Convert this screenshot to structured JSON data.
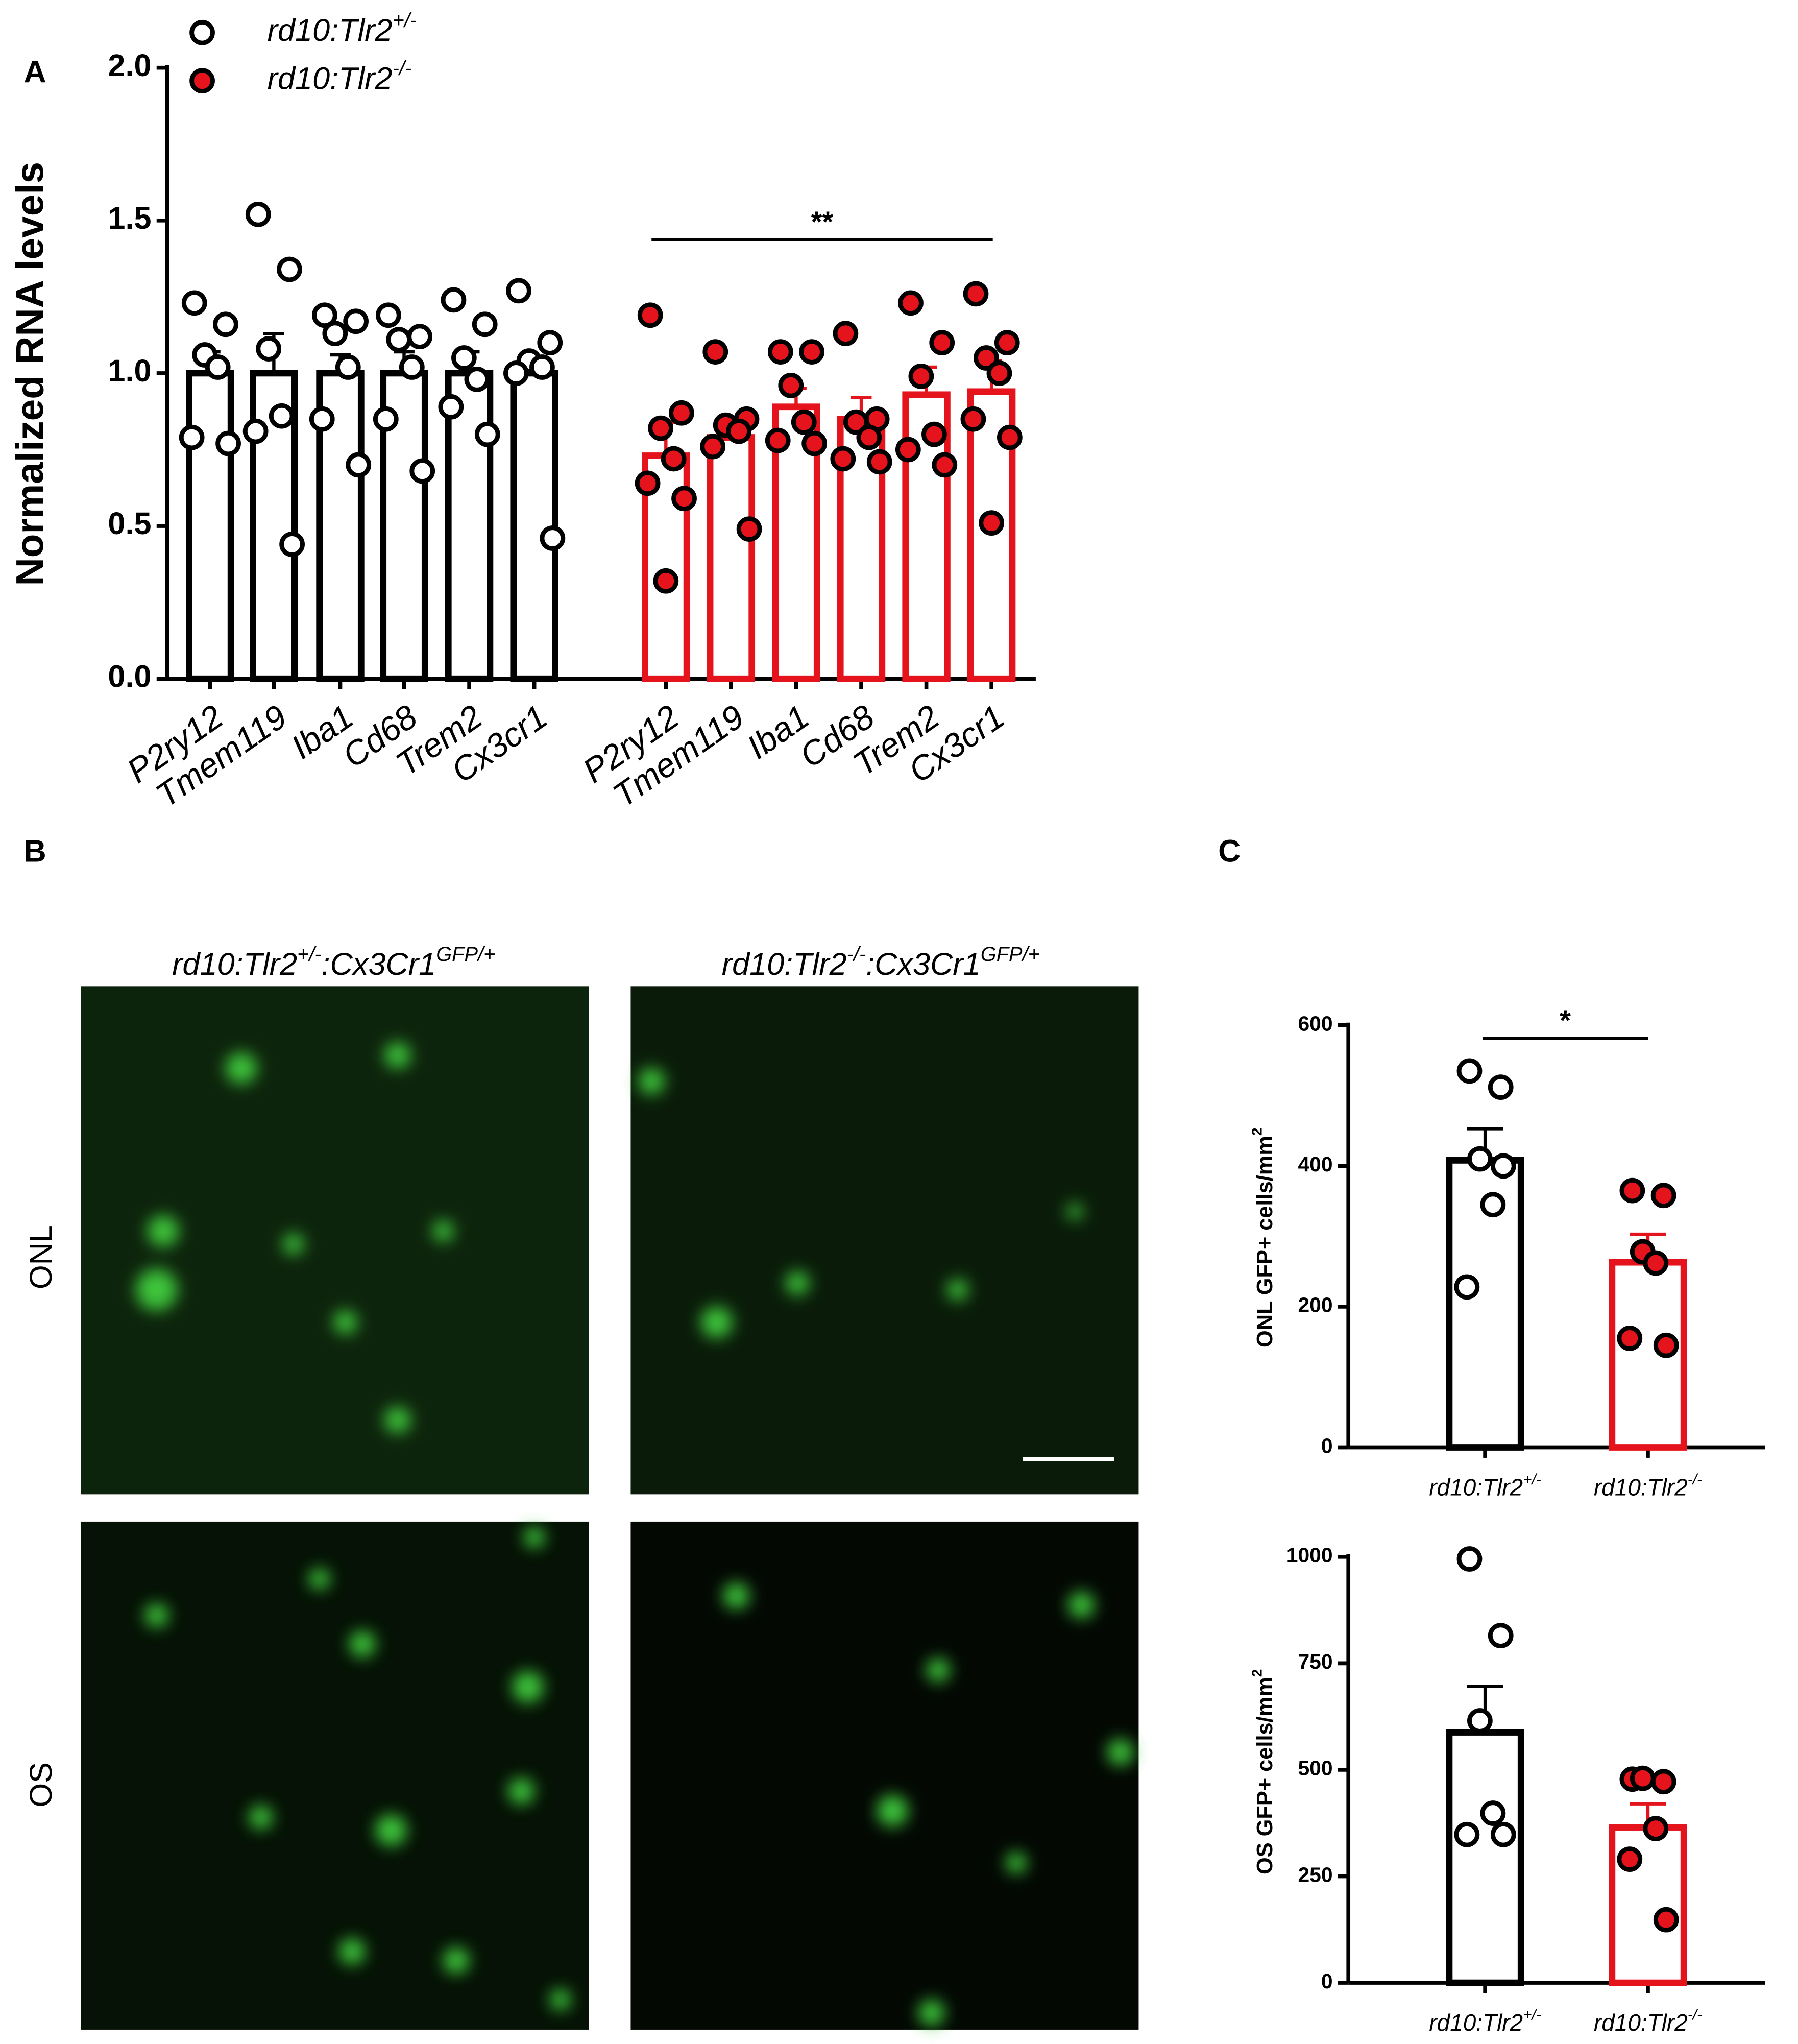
{
  "chart_data": [
    {
      "type": "bar",
      "panel": "A",
      "ylabel": "Normalized RNA levels",
      "categories": [
        "P2ry12",
        "Tmem119",
        "Iba1",
        "Cd68",
        "Trem2",
        "Cx3cr1"
      ],
      "ylim": [
        0,
        2.0
      ],
      "yticks": [
        {
          "value": 0,
          "label": "0.0"
        },
        {
          "value": 0.5,
          "label": "0.5"
        },
        {
          "value": 1.0,
          "label": "1.0"
        },
        {
          "value": 1.5,
          "label": "1.5"
        },
        {
          "value": 2.0,
          "label": "2.0"
        }
      ],
      "annotation": "**",
      "series": [
        {
          "name": "rd10:Tlr2+/-",
          "color": "#000000",
          "marker_fill": "#ffffff",
          "values": [
            1.0,
            1.0,
            1.0,
            1.0,
            1.0,
            1.0
          ],
          "errors": [
            0.07,
            0.13,
            0.06,
            0.07,
            0.07,
            0.04
          ],
          "points": [
            [
              1.23,
              1.16,
              1.06,
              1.02,
              0.79,
              0.77
            ],
            [
              1.52,
              1.34,
              1.08,
              0.86,
              0.81,
              0.44
            ],
            [
              1.19,
              1.17,
              1.13,
              1.02,
              0.85,
              0.7
            ],
            [
              1.19,
              1.12,
              1.11,
              1.02,
              0.85,
              0.68
            ],
            [
              1.24,
              1.16,
              1.05,
              0.98,
              0.89,
              0.8
            ],
            [
              1.27,
              1.1,
              1.04,
              1.02,
              1.0,
              0.46
            ]
          ]
        },
        {
          "name": "rd10:Tlr2-/-",
          "color": "#e5131b",
          "marker_fill": "#e5131b",
          "values": [
            0.73,
            0.79,
            0.89,
            0.85,
            0.93,
            0.94
          ],
          "errors": [
            0.11,
            0.05,
            0.06,
            0.07,
            0.09,
            0.1
          ],
          "points": [
            [
              1.19,
              0.87,
              0.82,
              0.72,
              0.64,
              0.59,
              0.32
            ],
            [
              1.07,
              0.85,
              0.83,
              0.81,
              0.76,
              0.49
            ],
            [
              1.07,
              1.07,
              0.96,
              0.84,
              0.78,
              0.77
            ],
            [
              1.13,
              0.85,
              0.84,
              0.79,
              0.72,
              0.71
            ],
            [
              1.23,
              1.1,
              0.99,
              0.8,
              0.75,
              0.7
            ],
            [
              1.26,
              1.1,
              1.05,
              1.0,
              0.85,
              0.79,
              0.51
            ]
          ]
        }
      ]
    },
    {
      "type": "bar",
      "panel": "C",
      "ylabel": "ONL GFP+ cells/mm2",
      "categories": [
        "rd10:Tlr2+/-",
        "rd10:Tlr2-/-"
      ],
      "colors": [
        "#000000",
        "#e5131b"
      ],
      "marker_fills": [
        "#ffffff",
        "#e5131b"
      ],
      "values": [
        408,
        263
      ],
      "errors": [
        45,
        40
      ],
      "points": [
        [
          535,
          512,
          410,
          345,
          228,
          400
        ],
        [
          365,
          358,
          278,
          262,
          155,
          145
        ]
      ],
      "ylim": [
        0,
        600
      ],
      "yticks": [
        0,
        200,
        400,
        600
      ],
      "annotation": "*"
    },
    {
      "type": "bar",
      "ylabel": "OS GFP+ cells/mm2",
      "categories": [
        "rd10:Tlr2+/-",
        "rd10:Tlr2-/-"
      ],
      "colors": [
        "#000000",
        "#e5131b"
      ],
      "marker_fills": [
        "#ffffff",
        "#e5131b"
      ],
      "values": [
        588,
        365
      ],
      "errors": [
        108,
        55
      ],
      "points": [
        [
          995,
          815,
          615,
          398,
          348,
          348
        ],
        [
          478,
          472,
          480,
          362,
          290,
          148
        ]
      ],
      "ylim": [
        0,
        1000
      ],
      "yticks": [
        0,
        250,
        500,
        750,
        1000
      ]
    }
  ],
  "image_panel": {
    "label": "B",
    "columns": [
      "rd10:Tlr2+/-:Cx3Cr1GFP/+",
      "rd10:Tlr2-/-:Cx3Cr1GFP/+"
    ],
    "rows": [
      "ONL",
      "OS"
    ]
  }
}
